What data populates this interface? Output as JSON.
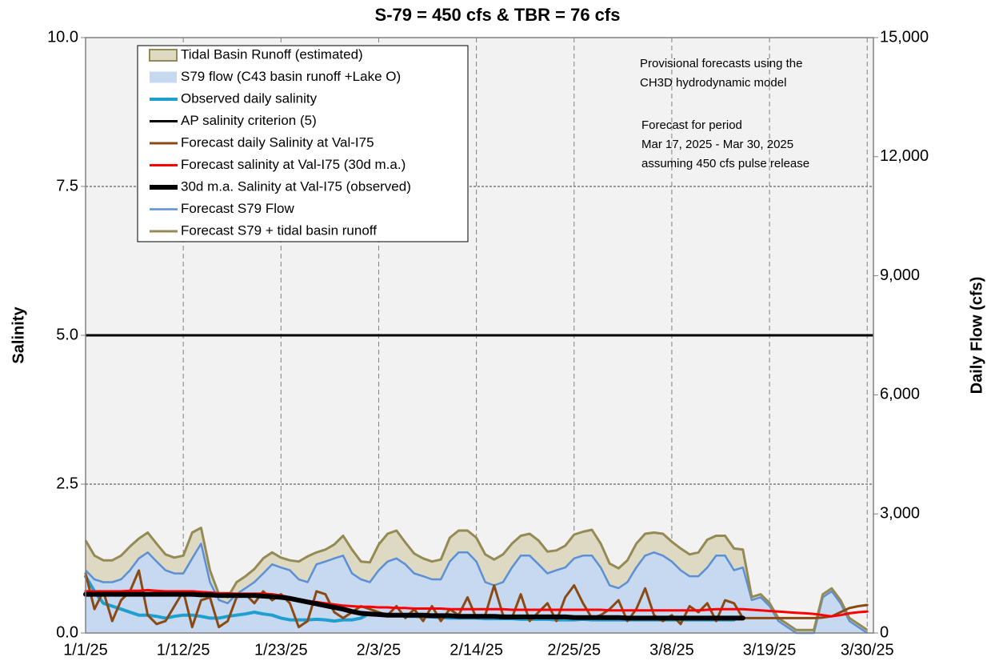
{
  "chart_data": {
    "type": "combo",
    "title": "S-79 = 450 cfs & TBR =  76 cfs",
    "ylabel": "Salinity",
    "y2label": "Daily Flow (cfs)",
    "annotations": [
      [
        "Provisional forecasts using the",
        "CH3D hydrodynamic model"
      ],
      [
        "Forecast for period",
        "Mar 17, 2025 - Mar 30, 2025",
        "assuming 450 cfs pulse release"
      ]
    ],
    "categories": [
      "1/1/25",
      null,
      null,
      null,
      null,
      null,
      null,
      null,
      null,
      null,
      null,
      "1/12/25",
      null,
      null,
      null,
      null,
      null,
      null,
      null,
      null,
      null,
      null,
      "1/23/25",
      null,
      null,
      null,
      null,
      null,
      null,
      null,
      null,
      null,
      null,
      "2/3/25",
      null,
      null,
      null,
      null,
      null,
      null,
      null,
      null,
      null,
      null,
      "2/14/25",
      null,
      null,
      null,
      null,
      null,
      null,
      null,
      null,
      null,
      null,
      "2/25/25",
      null,
      null,
      null,
      null,
      null,
      null,
      null,
      null,
      null,
      null,
      "3/8/25",
      null,
      null,
      null,
      null,
      null,
      null,
      null,
      null,
      null,
      null,
      "3/19/25",
      null,
      null,
      null,
      null,
      null,
      null,
      null,
      null,
      null,
      null,
      "3/30/25"
    ],
    "ylim": [
      0,
      10
    ],
    "yticks": [
      {
        "value": 0,
        "label": "0.0"
      },
      {
        "value": 2.5,
        "label": "2.5"
      },
      {
        "value": 5,
        "label": "5.0"
      },
      {
        "value": 7.5,
        "label": "7.5"
      },
      {
        "value": 10,
        "label": "10.0"
      }
    ],
    "y2lim": [
      0,
      15000
    ],
    "y2ticks": [
      0,
      {
        "value": 3000,
        "label": "3,000"
      },
      {
        "value": 6000,
        "label": "6,000"
      },
      {
        "value": 9000,
        "label": "9,000"
      },
      {
        "value": 12000,
        "label": "12,000"
      },
      {
        "value": 15000,
        "label": "15,000"
      }
    ],
    "grid": true,
    "legend": "top-left",
    "series": [
      {
        "name": "Tidal Basin Runoff (estimated)",
        "kind": "area",
        "axis": "y2",
        "color": "#ddd9c3",
        "values": [
          750,
          600,
          550,
          550,
          600,
          600,
          500,
          500,
          450,
          400,
          400,
          450,
          650,
          400,
          300,
          150,
          150,
          300,
          300,
          330,
          380,
          300,
          250,
          250,
          450,
          650,
          300,
          300,
          350,
          500,
          600,
          450,
          500,
          650,
          700,
          700,
          550,
          500,
          450,
          450,
          500,
          600,
          550,
          550,
          600,
          700,
          650,
          700,
          600,
          500,
          550,
          600,
          550,
          500,
          550,
          600,
          600,
          650,
          600,
          550,
          500,
          550,
          600,
          550,
          500,
          550,
          500,
          550,
          550,
          600,
          700,
          500,
          500,
          550,
          450,
          76,
          76,
          76,
          76,
          76,
          76,
          76,
          76,
          76,
          76,
          76,
          76,
          76,
          76
        ]
      },
      {
        "name": "S79 flow (C43 basin runoff +Lake O)",
        "kind": "area",
        "axis": "y2",
        "color": "#c6d9f1",
        "values": [
          1580,
          1350,
          1280,
          1280,
          1350,
          1580,
          1880,
          2030,
          1800,
          1580,
          1500,
          1500,
          1880,
          2250,
          1280,
          830,
          750,
          980,
          1130,
          1280,
          1500,
          1730,
          1650,
          1580,
          1350,
          1280,
          1730,
          1800,
          1880,
          1950,
          1500,
          1350,
          1280,
          1580,
          1800,
          1880,
          1730,
          1500,
          1430,
          1350,
          1350,
          1800,
          2030,
          2030,
          1800,
          1280,
          1200,
          1280,
          1650,
          1950,
          1950,
          1730,
          1500,
          1580,
          1650,
          1880,
          1950,
          1950,
          1650,
          1200,
          1130,
          1280,
          1650,
          1950,
          2030,
          1950,
          1800,
          1580,
          1430,
          1430,
          1650,
          1950,
          1950,
          1580,
          1650,
          830,
          900,
          680,
          300,
          150,
          0,
          0,
          0,
          900,
          1050,
          750,
          300,
          150,
          0
        ]
      },
      {
        "name": "Observed daily salinity",
        "kind": "line",
        "color": "#1f9fd0",
        "width": 4,
        "values": [
          0.95,
          0.7,
          0.5,
          0.45,
          0.4,
          0.35,
          0.3,
          0.3,
          0.28,
          0.25,
          0.28,
          0.3,
          0.3,
          0.28,
          0.25,
          0.25,
          0.28,
          0.3,
          0.32,
          0.35,
          0.32,
          0.3,
          0.25,
          0.22,
          0.22,
          0.22,
          0.23,
          0.22,
          0.2,
          0.22,
          0.22,
          0.25,
          0.33,
          0.32,
          0.3,
          0.3,
          0.28,
          0.28,
          0.27,
          0.27,
          0.26,
          0.25,
          0.25,
          0.25,
          0.25,
          0.24,
          0.24,
          0.24,
          0.24,
          0.23,
          0.23,
          0.23,
          0.23,
          0.22,
          0.22,
          0.22,
          0.23,
          0.22,
          0.22,
          0.22,
          0.22,
          0.22,
          0.22,
          0.22,
          0.22,
          0.22,
          0.22,
          0.22,
          0.22,
          0.22,
          0.22,
          0.22,
          0.22,
          0.22,
          null,
          null,
          null,
          null,
          null,
          null,
          null,
          null,
          null,
          null,
          null,
          null,
          null,
          null,
          null
        ]
      },
      {
        "name": "AP salinity criterion (5)",
        "kind": "hline",
        "color": "#000000",
        "width": 3,
        "value": 5
      },
      {
        "name": "Forecast daily Salinity at Val-I75",
        "kind": "line",
        "color": "#8b4a14",
        "width": 3,
        "values": [
          1.0,
          0.4,
          0.7,
          0.2,
          0.55,
          0.7,
          1.05,
          0.3,
          0.15,
          0.2,
          0.45,
          0.7,
          0.1,
          0.55,
          0.6,
          0.1,
          0.2,
          0.6,
          0.65,
          0.5,
          0.7,
          0.55,
          0.65,
          0.5,
          0.1,
          0.2,
          0.7,
          0.65,
          0.35,
          0.25,
          0.35,
          0.45,
          0.4,
          0.35,
          0.3,
          0.45,
          0.25,
          0.4,
          0.2,
          0.45,
          0.2,
          0.4,
          0.3,
          0.6,
          0.25,
          0.3,
          0.8,
          0.3,
          0.25,
          0.65,
          0.2,
          0.35,
          0.5,
          0.2,
          0.6,
          0.8,
          0.5,
          0.25,
          0.3,
          0.4,
          0.55,
          0.2,
          0.4,
          0.75,
          0.3,
          0.2,
          0.3,
          0.15,
          0.45,
          0.35,
          0.5,
          0.2,
          0.55,
          0.5,
          0.25,
          0.25,
          0.25,
          0.25,
          0.25,
          0.25,
          0.25,
          0.25,
          0.25,
          0.26,
          0.28,
          0.35,
          0.42,
          0.45,
          0.47
        ]
      },
      {
        "name": "Forecast salinity at Val-I75 (30d m.a.)",
        "kind": "line",
        "color": "#ff0000",
        "width": 3,
        "values": [
          0.7,
          0.7,
          0.7,
          0.7,
          0.7,
          0.71,
          0.71,
          0.72,
          0.71,
          0.7,
          0.7,
          0.7,
          0.7,
          0.69,
          0.68,
          0.67,
          0.67,
          0.66,
          0.66,
          0.66,
          0.66,
          0.65,
          0.63,
          0.6,
          0.57,
          0.54,
          0.52,
          0.5,
          0.48,
          0.46,
          0.45,
          0.44,
          0.44,
          0.43,
          0.43,
          0.42,
          0.42,
          0.41,
          0.41,
          0.41,
          0.41,
          0.4,
          0.4,
          0.4,
          0.4,
          0.4,
          0.4,
          0.4,
          0.39,
          0.39,
          0.39,
          0.39,
          0.39,
          0.39,
          0.39,
          0.39,
          0.39,
          0.39,
          0.39,
          0.38,
          0.38,
          0.38,
          0.38,
          0.38,
          0.38,
          0.38,
          0.38,
          0.38,
          0.38,
          0.38,
          0.39,
          0.4,
          0.4,
          0.4,
          0.4,
          0.39,
          0.38,
          0.37,
          0.36,
          0.35,
          0.34,
          0.33,
          0.32,
          0.3,
          0.28,
          0.3,
          0.33,
          0.35,
          0.36
        ]
      },
      {
        "name": "30d m.a. Salinity at Val-I75 (observed)",
        "kind": "line",
        "color": "#000000",
        "width": 6,
        "values": [
          0.65,
          0.65,
          0.65,
          0.65,
          0.65,
          0.65,
          0.65,
          0.65,
          0.65,
          0.65,
          0.65,
          0.65,
          0.65,
          0.64,
          0.64,
          0.63,
          0.63,
          0.63,
          0.63,
          0.63,
          0.62,
          0.61,
          0.6,
          0.58,
          0.55,
          0.52,
          0.49,
          0.46,
          0.43,
          0.4,
          0.36,
          0.33,
          0.32,
          0.31,
          0.3,
          0.3,
          0.3,
          0.3,
          0.3,
          0.29,
          0.29,
          0.29,
          0.28,
          0.28,
          0.28,
          0.28,
          0.28,
          0.27,
          0.27,
          0.27,
          0.27,
          0.27,
          0.27,
          0.27,
          0.27,
          0.26,
          0.26,
          0.26,
          0.26,
          0.26,
          0.26,
          0.25,
          0.25,
          0.25,
          0.25,
          0.25,
          0.25,
          0.25,
          0.25,
          0.25,
          0.25,
          0.25,
          0.25,
          0.25,
          0.25,
          null,
          null,
          null,
          null,
          null,
          null,
          null,
          null,
          null,
          null,
          null,
          null,
          null,
          null
        ]
      },
      {
        "name": "Forecast S79 Flow",
        "kind": "edge",
        "axis": "y2",
        "color": "#5b8fd6",
        "width": 2.5
      },
      {
        "name": "Forecast S79 + tidal basin runoff",
        "kind": "edge",
        "axis": "y2",
        "color": "#948a54",
        "width": 3
      }
    ]
  }
}
